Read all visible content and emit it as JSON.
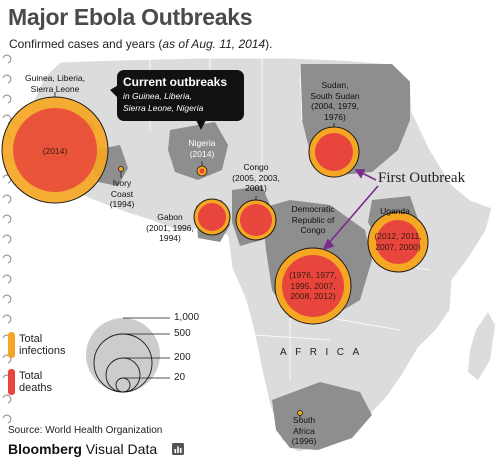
{
  "header": {
    "title": "Major Ebola Outbreaks",
    "subtitle": "Confirmed cases and years (as of Aug. 11, 2014)."
  },
  "callout": {
    "heading": "Current outbreaks",
    "line1": "in Guinea, Liberia,",
    "line2": "Sierra Leone, Nigeria"
  },
  "annotation": {
    "first_outbreak": "First Outbreak",
    "arrow_color": "#7a2b8c"
  },
  "map": {
    "region_label": "AFRICA",
    "colors": {
      "ocean": "#ffffff",
      "land": "#dcdcdc",
      "affected_country": "#8e8e8e",
      "infections": "#f5a623",
      "deaths": "#e8453c"
    }
  },
  "outbreaks": [
    {
      "id": "guinea",
      "name_line1": "Guinea, Liberia,",
      "name_line2": "Sierra Leone",
      "years": "(2014)",
      "current": true
    },
    {
      "id": "ivory-coast",
      "name_line1": "Ivory",
      "name_line2": "Coast",
      "years": "(1994)",
      "current": false
    },
    {
      "id": "nigeria",
      "name_line1": "Nigeria",
      "years": "(2014)",
      "current": true
    },
    {
      "id": "gabon",
      "name_line1": "Gabon",
      "years_line1": "(2001, 1996,",
      "years_line2": "1994)",
      "current": false
    },
    {
      "id": "congo",
      "name_line1": "Congo",
      "years_line1": "(2005, 2003,",
      "years_line2": "2001)",
      "current": false
    },
    {
      "id": "sudan",
      "name_line1": "Sudan,",
      "name_line2": "South Sudan",
      "years_line1": "(2004, 1979,",
      "years_line2": "1976)",
      "current": false
    },
    {
      "id": "drc",
      "name_line1": "Democratic",
      "name_line2": "Republic of",
      "name_line3": "Congo",
      "years_line1": "(1976, 1977,",
      "years_line2": "1995, 2007,",
      "years_line3": "2008, 2012)",
      "current": false
    },
    {
      "id": "uganda",
      "name_line1": "Uganda",
      "years_line1": "(2012, 2011,",
      "years_line2": "2007, 2000)",
      "current": false
    },
    {
      "id": "south-africa",
      "name_line1": "South",
      "name_line2": "Africa",
      "years": "(1996)",
      "current": false
    }
  ],
  "legend": {
    "infections_line1": "Total",
    "infections_line2": "infections",
    "deaths_line1": "Total",
    "deaths_line2": "deaths",
    "scale": [
      "1,000",
      "500",
      "200",
      "20"
    ]
  },
  "footer": {
    "source": "Source: World Health Organization",
    "brand_bold": "Bloomberg",
    "brand_regular": " Visual Data",
    "brand_icon": "bar-chart-icon"
  }
}
